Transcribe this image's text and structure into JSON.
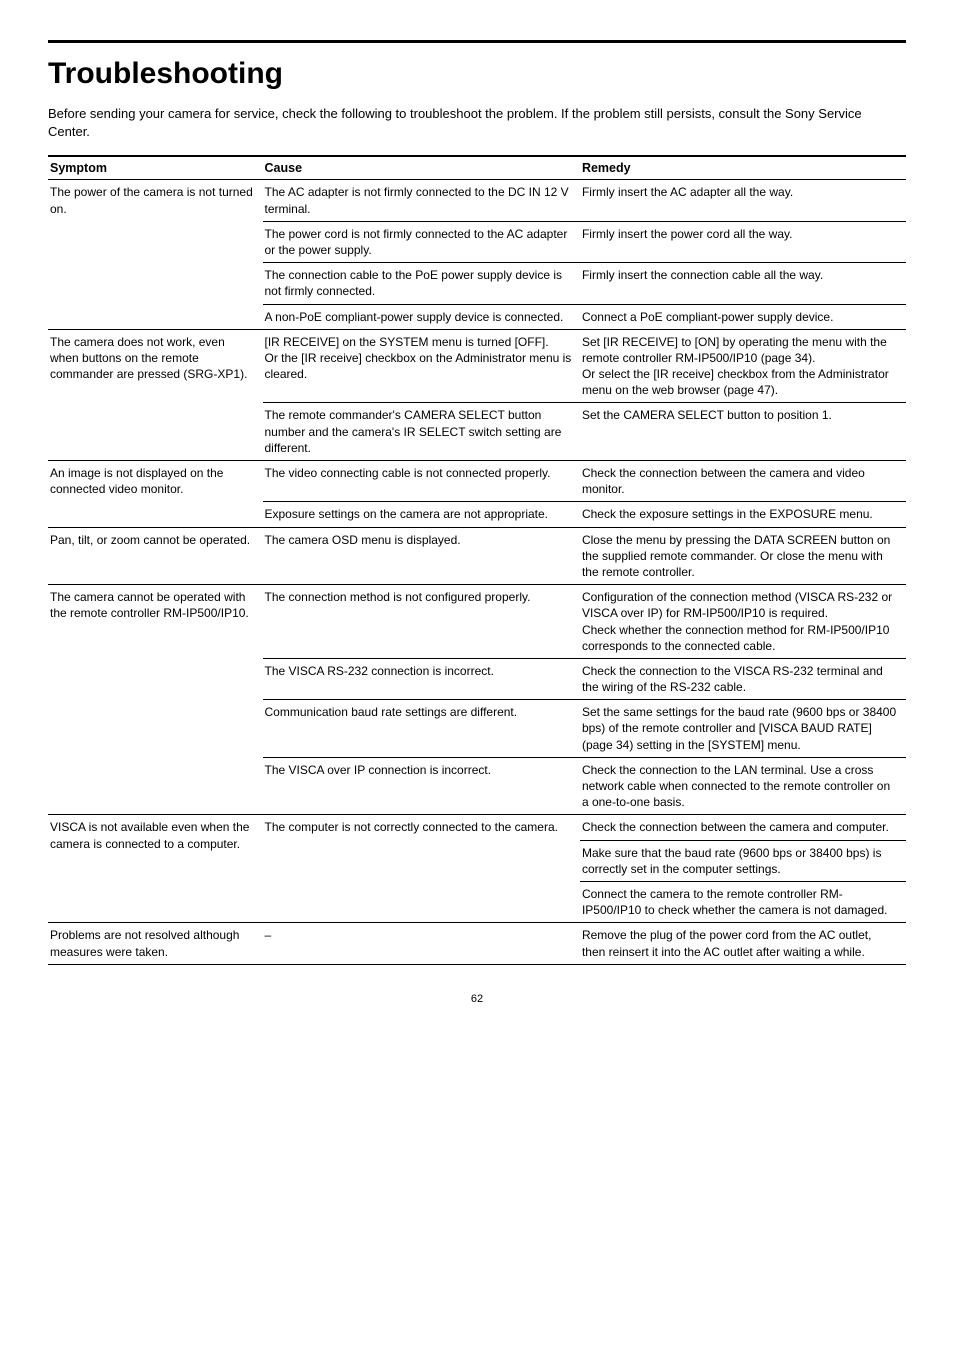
{
  "title": "Troubleshooting",
  "intro": "Before sending your camera for service, check the following to troubleshoot the problem. If the problem still persists, consult the Sony Service Center.",
  "headers": {
    "symptom": "Symptom",
    "cause": "Cause",
    "remedy": "Remedy"
  },
  "page_number": "62",
  "groups": [
    {
      "symptom": "The power of the camera is not turned on.",
      "rows": [
        {
          "cause": "The AC adapter is not firmly connected to the DC IN 12 V terminal.",
          "remedy": "Firmly insert the AC adapter all the way."
        },
        {
          "cause": "The power cord is not firmly connected to the AC adapter or the power supply.",
          "remedy": "Firmly insert the power cord all the way."
        },
        {
          "cause": "The connection cable to the PoE power supply device is not firmly connected.",
          "remedy": "Firmly insert the connection cable all the way."
        },
        {
          "cause": "A non-PoE compliant-power supply device is connected.",
          "remedy": "Connect a PoE compliant-power supply device."
        }
      ]
    },
    {
      "symptom": "The camera does not work, even when buttons on the remote commander are pressed (SRG-XP1).",
      "rows": [
        {
          "cause": "[IR RECEIVE] on the SYSTEM menu is turned [OFF].\nOr the [IR receive] checkbox on the Administrator menu is cleared.",
          "remedy": "Set [IR RECEIVE] to [ON] by operating the menu with the remote controller RM-IP500/IP10 (page 34).\nOr select the [IR receive] checkbox from the Administrator menu on the web browser (page 47)."
        },
        {
          "cause": "The remote commander's CAMERA SELECT button number and the camera's IR SELECT switch setting are different.",
          "remedy": "Set the CAMERA SELECT button to position 1."
        }
      ]
    },
    {
      "symptom": "An image is not displayed on the connected video monitor.",
      "rows": [
        {
          "cause": "The video connecting cable is not connected properly.",
          "remedy": "Check the connection between the camera and video monitor."
        },
        {
          "cause": "Exposure settings on the camera are not appropriate.",
          "remedy": "Check the exposure settings in the EXPOSURE menu."
        }
      ]
    },
    {
      "symptom": "Pan, tilt, or zoom cannot be operated.",
      "rows": [
        {
          "cause": "The camera OSD menu is displayed.",
          "remedy": "Close the menu by pressing the DATA SCREEN button on the supplied remote commander. Or close the menu with the remote controller."
        }
      ]
    },
    {
      "symptom": "The camera cannot be operated with the remote controller RM-IP500/IP10.",
      "rows": [
        {
          "cause": "The connection method is not configured properly.",
          "remedy": "Configuration of the connection method (VISCA RS-232 or VISCA over IP) for RM-IP500/IP10 is required.\nCheck whether the connection method for RM-IP500/IP10 corresponds to the connected cable."
        },
        {
          "cause": "The VISCA RS-232 connection is incorrect.",
          "remedy": "Check the connection to the VISCA RS-232 terminal and the wiring of the RS-232 cable."
        },
        {
          "cause": "Communication baud rate settings are different.",
          "remedy": "Set the same settings for the baud rate (9600 bps or 38400 bps) of the remote controller and [VISCA BAUD RATE] (page 34) setting in the [SYSTEM] menu."
        },
        {
          "cause": "The VISCA over IP connection is incorrect.",
          "remedy": "Check the connection to the LAN terminal. Use a cross network cable when connected to the remote controller on a one-to-one basis."
        }
      ]
    },
    {
      "symptom": "VISCA is not available even when the camera is connected to a computer.",
      "rows": [
        {
          "cause": "The computer is not correctly connected to the camera.",
          "remedy": "Check the connection between the camera and computer."
        },
        {
          "cause": "",
          "remedy": "Make sure that the baud rate (9600 bps or 38400 bps) is correctly set in the computer settings."
        },
        {
          "cause": "",
          "remedy": "Connect the camera to the remote controller RM-IP500/IP10 to check whether the camera is not damaged."
        }
      ]
    },
    {
      "symptom": "Problems are not resolved although measures were taken.",
      "rows": [
        {
          "cause": "–",
          "remedy": "Remove the plug of the power cord from the AC outlet, then reinsert it into the AC outlet after waiting a while."
        }
      ]
    }
  ]
}
